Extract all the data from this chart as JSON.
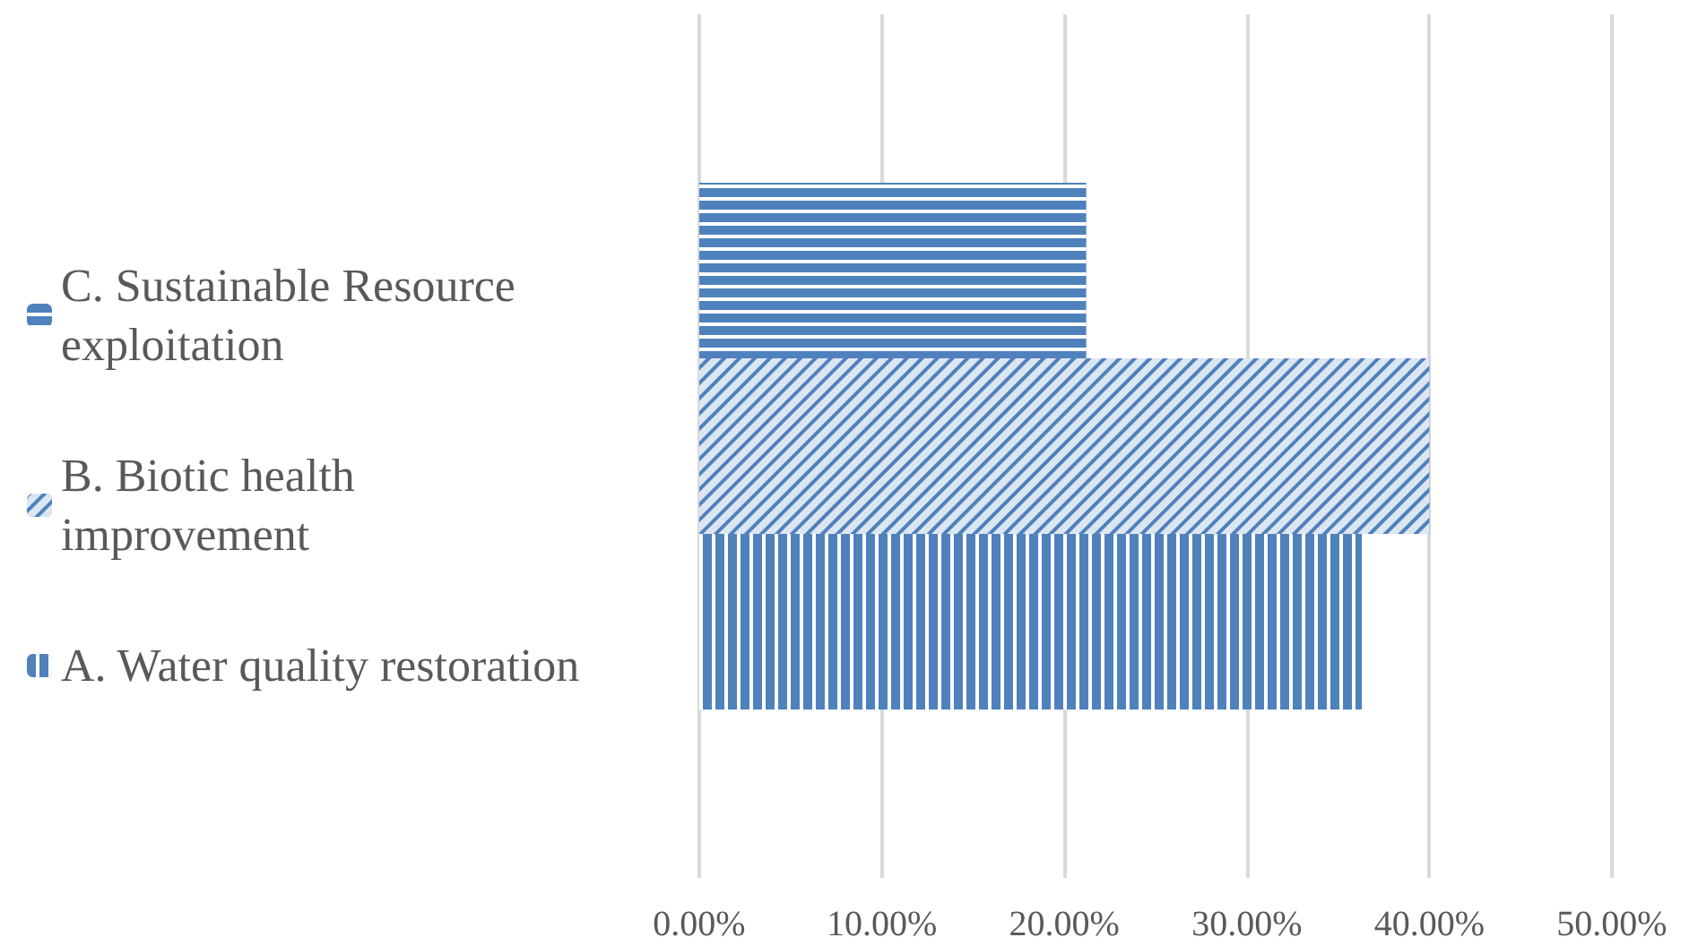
{
  "chart_data": {
    "type": "bar",
    "orientation": "horizontal",
    "categories": [
      null
    ],
    "series": [
      {
        "name": "A. Water quality restoration",
        "color": "#4f81bd",
        "values": [
          36.3
        ]
      },
      {
        "name": "B. Biotic health improvement",
        "color": "#4f81bd",
        "values": [
          40.0
        ]
      },
      {
        "name": "C. Sustainable Resource exploitation",
        "color": "#4f81bd",
        "values": [
          21.2
        ]
      }
    ],
    "xlim": [
      0,
      50
    ],
    "xticks": [
      {
        "value": 0,
        "label": "0.00%"
      },
      {
        "value": 10,
        "label": "10.00%"
      },
      {
        "value": 20,
        "label": "20.00%"
      },
      {
        "value": 30,
        "label": "30.00%"
      },
      {
        "value": 40,
        "label": "40.00%"
      },
      {
        "value": 50,
        "label": "50.00%"
      }
    ],
    "grid": "x",
    "legend": "left"
  }
}
